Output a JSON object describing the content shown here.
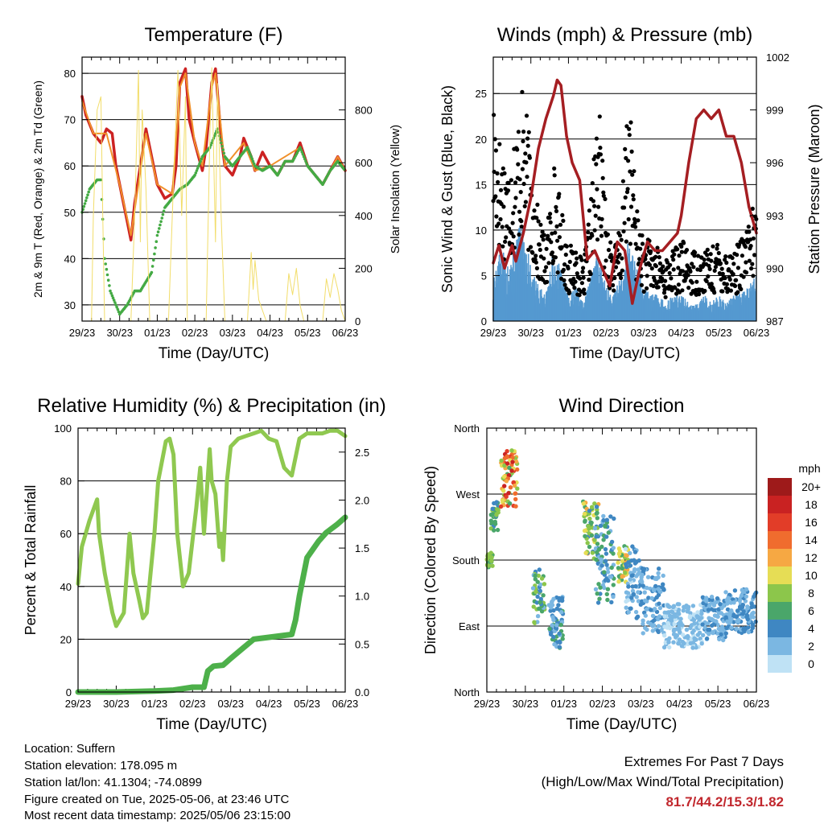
{
  "x_ticks": [
    "29/23",
    "30/23",
    "01/23",
    "02/23",
    "03/23",
    "04/23",
    "05/23",
    "06/23"
  ],
  "info": {
    "location": "Location: Suffern",
    "elevation": "Station elevation: 178.095 m",
    "latlon": "Station lat/lon: 41.1304; -74.0899",
    "created": "Figure created on Tue, 2025-05-06, at 23:46 UTC",
    "recent": "Most recent data timestamp: 2025/05/06 23:15:00"
  },
  "extremes": {
    "title": "Extremes For Past 7 Days",
    "subtitle": "(High/Low/Max Wind/Total Precipitation)",
    "values": "81.7/44.2/15.3/1.82"
  },
  "colors": {
    "temp_red": "#cc2222",
    "temp_orange": "#f0902a",
    "dewpoint_green": "#44aa44",
    "solar_yellow": "#f2dd6a",
    "wind_blue": "#5599d0",
    "gust_black": "#000000",
    "pressure_maroon": "#a51e22",
    "rh_lightgreen": "#8fc850",
    "rain_green": "#4db04a"
  },
  "chart_data": [
    {
      "type": "line",
      "title": "Temperature (F)",
      "xlabel": "Time (Day/UTC)",
      "ylabel": "2m & 9m T (Red, Orange) & 2m Td (Green)",
      "ylabel_right": "Solar Insolation (Yellow)",
      "ylim": [
        26.5,
        83.5
      ],
      "yticks": [
        30,
        40,
        50,
        60,
        70,
        80
      ],
      "ylim_right": [
        0,
        1000
      ],
      "yticks_right": [
        0,
        200,
        400,
        600,
        800
      ],
      "series": [
        {
          "key": "temp_2m",
          "color_key": "temp_red",
          "x": [
            0,
            0.1,
            0.3,
            0.5,
            0.65,
            0.8,
            0.9,
            1.0,
            1.2,
            1.3,
            1.4,
            1.55,
            1.7,
            1.9,
            2.0,
            2.2,
            2.4,
            2.5,
            2.6,
            2.75,
            2.85,
            3.0,
            3.2,
            3.3,
            3.45,
            3.55,
            3.7,
            3.8,
            4.0,
            4.2,
            4.3,
            4.5,
            4.6,
            4.8,
            5.0,
            5.2,
            5.4,
            5.6,
            5.8,
            6.0,
            6.2,
            6.4,
            6.6,
            6.8,
            7.0
          ],
          "values": [
            75,
            71,
            67,
            65,
            68,
            67,
            60,
            56,
            48,
            44,
            52,
            60,
            68,
            60,
            56,
            53,
            54,
            60,
            78,
            81,
            70,
            65,
            59,
            64,
            78,
            81,
            66,
            60,
            58,
            62,
            66,
            62,
            59,
            63,
            60,
            58,
            61,
            61,
            65,
            60,
            58,
            56,
            59,
            62,
            59
          ]
        },
        {
          "key": "temp_9m",
          "color_key": "temp_orange",
          "x": [
            0,
            0.3,
            0.65,
            1.0,
            1.3,
            1.7,
            2.0,
            2.4,
            2.6,
            2.75,
            3.0,
            3.2,
            3.45,
            3.55,
            3.8,
            4.3,
            4.6,
            5.0,
            5.8,
            6.0,
            6.4,
            6.8,
            7.0
          ],
          "values": [
            74,
            67,
            67,
            56,
            45,
            67,
            56,
            54,
            77,
            80,
            65,
            60,
            77,
            80,
            60,
            65,
            59,
            60,
            64,
            60,
            56,
            62,
            59
          ]
        },
        {
          "key": "dewpoint_2m",
          "color_key": "dewpoint_green",
          "x": [
            0,
            0.2,
            0.4,
            0.5,
            0.6,
            0.75,
            0.9,
            1.0,
            1.2,
            1.4,
            1.55,
            1.7,
            1.85,
            2.0,
            2.2,
            2.4,
            2.6,
            2.8,
            3.0,
            3.2,
            3.4,
            3.6,
            3.8,
            4.0,
            4.2,
            4.4,
            4.6,
            4.8,
            5.0,
            5.2,
            5.4,
            5.6,
            5.8,
            6.0,
            6.2,
            6.4,
            6.6,
            6.8,
            7.0
          ],
          "values": [
            50,
            55,
            57,
            57,
            40,
            33,
            30,
            28,
            30,
            33,
            33,
            35,
            37,
            45,
            51,
            53,
            55,
            56,
            58,
            62,
            64,
            68,
            62,
            60,
            62,
            64,
            60,
            59,
            60,
            58,
            61,
            61,
            64,
            60,
            58,
            56,
            59,
            61,
            59
          ]
        },
        {
          "key": "solar",
          "axis": "right",
          "color_key": "solar_yellow",
          "x": [
            0,
            0.25,
            0.3,
            0.4,
            0.5,
            0.55,
            0.6,
            1.0,
            1.3,
            1.4,
            1.5,
            1.55,
            1.6,
            1.7,
            1.8,
            2.0,
            2.3,
            2.45,
            2.55,
            2.65,
            2.75,
            2.8,
            3.0,
            3.3,
            3.4,
            3.45,
            3.55,
            3.6,
            3.7,
            3.8,
            4.0,
            4.4,
            4.5,
            4.55,
            4.6,
            4.7,
            4.9,
            5.4,
            5.5,
            5.6,
            5.7,
            5.8,
            5.9,
            6.4,
            6.5,
            6.6,
            6.7,
            6.8,
            6.9,
            7.0
          ],
          "values": [
            0,
            0,
            400,
            800,
            850,
            400,
            0,
            0,
            0,
            400,
            950,
            300,
            800,
            500,
            0,
            0,
            0,
            600,
            950,
            400,
            850,
            0,
            0,
            0,
            700,
            960,
            300,
            900,
            400,
            0,
            0,
            0,
            260,
            120,
            230,
            80,
            0,
            0,
            180,
            100,
            200,
            60,
            0,
            0,
            160,
            90,
            180,
            120,
            40,
            0
          ]
        }
      ]
    },
    {
      "type": "line",
      "title": "Winds (mph) & Pressure (mb)",
      "xlabel": "Time (Day/UTC)",
      "ylabel": "Sonic Wind & Gust (Blue, Black)",
      "ylabel_right": "Station Pressure (Maroon)",
      "ylim": [
        0,
        29
      ],
      "yticks": [
        0,
        5,
        10,
        15,
        20,
        25
      ],
      "ylim_right": [
        987,
        1002
      ],
      "yticks_right": [
        987,
        990,
        993,
        996,
        999,
        1002
      ],
      "series": [
        {
          "key": "sonic_wind",
          "color_key": "wind_blue",
          "x": [
            0,
            0.2,
            0.4,
            0.6,
            0.8,
            1.0,
            1.2,
            1.4,
            1.6,
            1.8,
            2.0,
            2.2,
            2.4,
            2.6,
            2.8,
            3.0,
            3.2,
            3.4,
            3.6,
            3.8,
            4.0,
            4.2,
            4.4,
            4.6,
            4.8,
            5.0,
            5.2,
            5.4,
            5.6,
            5.8,
            6.0,
            6.2,
            6.4,
            6.6,
            6.8,
            7.0
          ],
          "values": [
            5,
            8,
            7,
            9,
            12,
            6,
            4,
            3,
            8,
            6,
            3,
            4,
            2,
            5,
            8,
            4,
            3,
            5,
            9,
            6,
            4,
            3,
            3,
            2,
            3,
            3,
            2,
            2,
            3,
            2,
            3,
            2,
            3,
            3,
            4,
            5
          ]
        },
        {
          "key": "gust_max",
          "color_key": "gust_black",
          "x": [
            0,
            0.2,
            0.4,
            0.6,
            0.8,
            1.0,
            1.2,
            1.4,
            1.6,
            1.8,
            2.0,
            2.2,
            2.4,
            2.6,
            2.8,
            3.0,
            3.2,
            3.4,
            3.6,
            3.8,
            4.0,
            4.2,
            4.4,
            4.6,
            4.8,
            5.0,
            5.2,
            5.4,
            5.6,
            5.8,
            6.0,
            6.2,
            6.4,
            6.6,
            6.8,
            7.0
          ],
          "values": [
            26,
            20,
            18,
            22,
            26,
            19,
            12,
            9,
            18,
            13,
            8,
            9,
            6,
            14,
            25,
            12,
            8,
            11,
            27,
            13,
            9,
            9,
            8,
            7,
            8,
            9,
            8,
            8,
            8,
            8,
            9,
            8,
            8,
            9,
            11,
            14
          ]
        },
        {
          "key": "pressure",
          "axis": "right",
          "color_key": "pressure_maroon",
          "x": [
            0,
            0.15,
            0.3,
            0.5,
            0.6,
            0.8,
            1.0,
            1.2,
            1.4,
            1.6,
            1.7,
            1.8,
            1.95,
            2.1,
            2.3,
            2.5,
            2.7,
            2.9,
            3.1,
            3.3,
            3.5,
            3.7,
            3.9,
            4.1,
            4.3,
            4.5,
            4.7,
            4.9,
            5.0,
            5.2,
            5.4,
            5.6,
            5.8,
            6.0,
            6.2,
            6.4,
            6.6,
            6.8,
            7.0
          ],
          "values": [
            990.3,
            991.3,
            990.0,
            991.3,
            990.4,
            992.0,
            994.0,
            996.8,
            998.5,
            999.8,
            1000.7,
            1000.4,
            997.5,
            996.0,
            995.0,
            990.5,
            991.0,
            990.0,
            989.0,
            991.5,
            991.0,
            988.0,
            990.0,
            991.5,
            991.0,
            991.0,
            991.5,
            992.0,
            993.0,
            996.0,
            998.5,
            999.0,
            998.5,
            999.0,
            997.5,
            997.5,
            996.0,
            993.5,
            992.0
          ]
        }
      ]
    },
    {
      "type": "line",
      "title": "Relative Humidity (%) & Precipitation (in)",
      "xlabel": "Time (Day/UTC)",
      "ylabel": "Percent & Total Rainfall",
      "ylim": [
        0,
        100
      ],
      "yticks": [
        0,
        20,
        40,
        60,
        80,
        100
      ],
      "ylim_right": [
        0,
        2.75
      ],
      "yticks_right": [
        0.0,
        0.5,
        1.0,
        1.5,
        2.0,
        2.5
      ],
      "series": [
        {
          "key": "relative_humidity",
          "color_key": "rh_lightgreen",
          "x": [
            0,
            0.1,
            0.3,
            0.5,
            0.55,
            0.7,
            0.9,
            1.0,
            1.2,
            1.3,
            1.35,
            1.45,
            1.6,
            1.7,
            1.8,
            1.9,
            2.0,
            2.1,
            2.3,
            2.4,
            2.5,
            2.6,
            2.75,
            2.9,
            3.1,
            3.2,
            3.3,
            3.45,
            3.5,
            3.6,
            3.7,
            3.75,
            3.8,
            3.9,
            4.0,
            4.2,
            4.4,
            4.6,
            4.8,
            5.0,
            5.2,
            5.4,
            5.6,
            5.8,
            6.0,
            6.2,
            6.4,
            6.6,
            6.8,
            7.0
          ],
          "values": [
            41,
            55,
            65,
            73,
            60,
            45,
            30,
            25,
            30,
            50,
            60,
            45,
            35,
            28,
            30,
            45,
            60,
            80,
            95,
            96,
            90,
            60,
            40,
            45,
            70,
            85,
            60,
            92,
            80,
            75,
            55,
            60,
            50,
            80,
            93,
            96,
            97,
            98,
            99,
            96,
            95,
            85,
            82,
            96,
            98,
            98,
            98,
            99,
            99,
            97
          ]
        },
        {
          "key": "total_rainfall",
          "axis": "right",
          "color_key": "rain_green",
          "x": [
            0,
            1.0,
            2.0,
            2.5,
            3.0,
            3.3,
            3.4,
            3.55,
            3.8,
            4.0,
            4.3,
            4.6,
            5.0,
            5.6,
            5.7,
            5.8,
            5.9,
            6.0,
            6.3,
            6.5,
            6.8,
            7.0
          ],
          "values": [
            0.0,
            0.0,
            0.01,
            0.02,
            0.05,
            0.05,
            0.22,
            0.27,
            0.28,
            0.35,
            0.45,
            0.55,
            0.57,
            0.6,
            0.75,
            1.0,
            1.2,
            1.4,
            1.57,
            1.66,
            1.75,
            1.82
          ]
        }
      ]
    },
    {
      "type": "scatter",
      "title": "Wind Direction",
      "xlabel": "Time (Day/UTC)",
      "ylabel": "Direction (Colored By Speed)",
      "yticks": [
        "North",
        "East",
        "South",
        "West",
        "North"
      ],
      "ylim": [
        0,
        360
      ],
      "colorbar": {
        "title": "mph",
        "labels": [
          "20+",
          "18",
          "16",
          "14",
          "12",
          "10",
          "8",
          "6",
          "4",
          "2",
          "0"
        ],
        "colors": [
          "#9e1a1a",
          "#c92222",
          "#e23d28",
          "#f06c2e",
          "#f6a843",
          "#e6dd55",
          "#8cc64b",
          "#4aa66a",
          "#3f87c2",
          "#7bb7e2",
          "#bfe2f5"
        ]
      },
      "clusters": [
        {
          "x": [
            0.0,
            0.15
          ],
          "dir": [
            170,
            190
          ],
          "speed": [
            6,
            9
          ]
        },
        {
          "x": [
            0.1,
            0.3
          ],
          "dir": [
            220,
            260
          ],
          "speed": [
            4,
            8
          ]
        },
        {
          "x": [
            0.35,
            0.8
          ],
          "dir": [
            250,
            330
          ],
          "speed": [
            6,
            18
          ]
        },
        {
          "x": [
            1.2,
            1.5
          ],
          "dir": [
            90,
            170
          ],
          "speed": [
            2,
            9
          ]
        },
        {
          "x": [
            1.6,
            2.0
          ],
          "dir": [
            60,
            130
          ],
          "speed": [
            1,
            6
          ]
        },
        {
          "x": [
            2.5,
            2.9
          ],
          "dir": [
            180,
            260
          ],
          "speed": [
            4,
            12
          ]
        },
        {
          "x": [
            2.8,
            3.3
          ],
          "dir": [
            120,
            240
          ],
          "speed": [
            1,
            7
          ]
        },
        {
          "x": [
            3.4,
            3.7
          ],
          "dir": [
            150,
            200
          ],
          "speed": [
            6,
            12
          ]
        },
        {
          "x": [
            3.6,
            4.0
          ],
          "dir": [
            100,
            200
          ],
          "speed": [
            0,
            5
          ]
        },
        {
          "x": [
            4.0,
            4.6
          ],
          "dir": [
            80,
            170
          ],
          "speed": [
            1,
            5
          ]
        },
        {
          "x": [
            4.6,
            5.6
          ],
          "dir": [
            60,
            120
          ],
          "speed": [
            0,
            3
          ]
        },
        {
          "x": [
            5.6,
            6.2
          ],
          "dir": [
            70,
            130
          ],
          "speed": [
            1,
            4
          ]
        },
        {
          "x": [
            6.2,
            7.0
          ],
          "dir": [
            80,
            140
          ],
          "speed": [
            1,
            5
          ]
        }
      ]
    }
  ]
}
